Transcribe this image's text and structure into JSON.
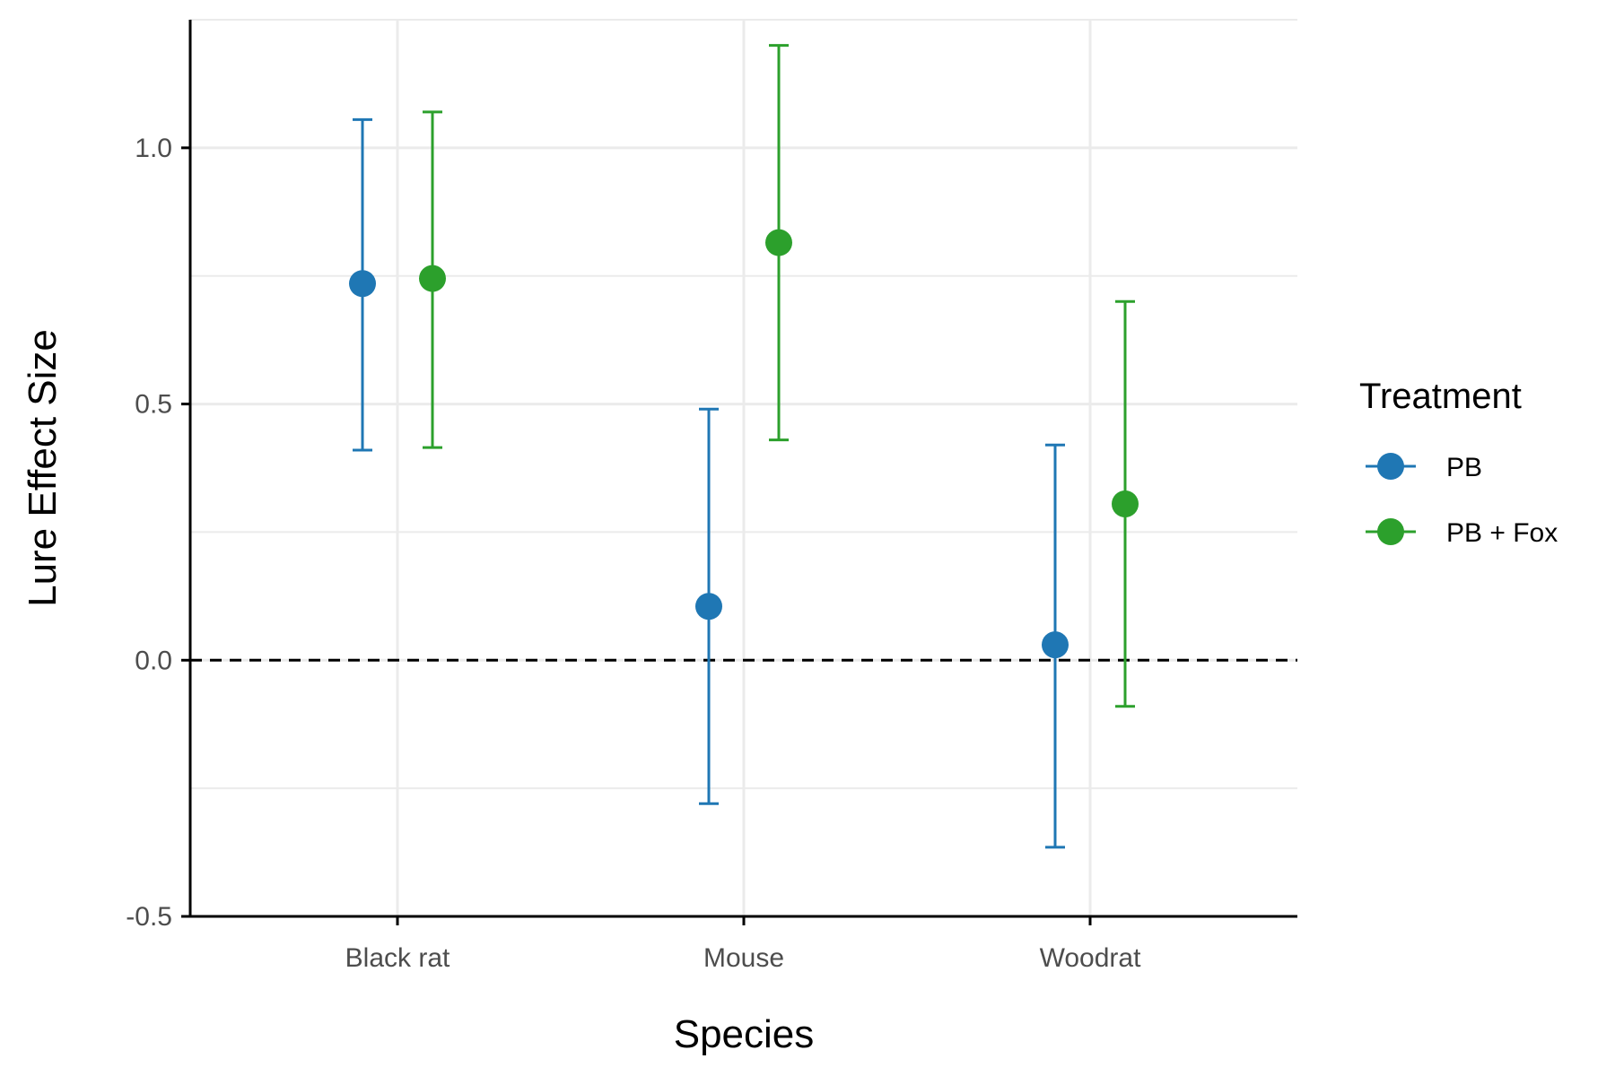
{
  "chart_data": {
    "type": "scatter",
    "subtype": "point-errorbar",
    "title": "",
    "xlabel": "Species",
    "ylabel": "Lure Effect Size",
    "categories": [
      "Black rat",
      "Mouse",
      "Woodrat"
    ],
    "ylim": [
      -0.5,
      1.25
    ],
    "yticks": [
      -0.5,
      0.0,
      0.5,
      1.0
    ],
    "ytick_labels": [
      "-0.5",
      "0.0",
      "0.5",
      "1.0"
    ],
    "grid": true,
    "reference_line": {
      "y": 0.0,
      "style": "dashed",
      "color": "#000000"
    },
    "legend": {
      "title": "Treatment",
      "position": "right"
    },
    "series": [
      {
        "name": "PB",
        "color": "#1f77b4",
        "values": [
          0.735,
          0.105,
          0.03
        ],
        "lower": [
          0.41,
          -0.28,
          -0.365
        ],
        "upper": [
          1.055,
          0.49,
          0.42
        ]
      },
      {
        "name": "PB + Fox",
        "color": "#2ca02c",
        "values": [
          0.745,
          0.815,
          0.305
        ],
        "lower": [
          0.415,
          0.43,
          -0.09
        ],
        "upper": [
          1.07,
          1.2,
          0.7
        ]
      }
    ]
  }
}
